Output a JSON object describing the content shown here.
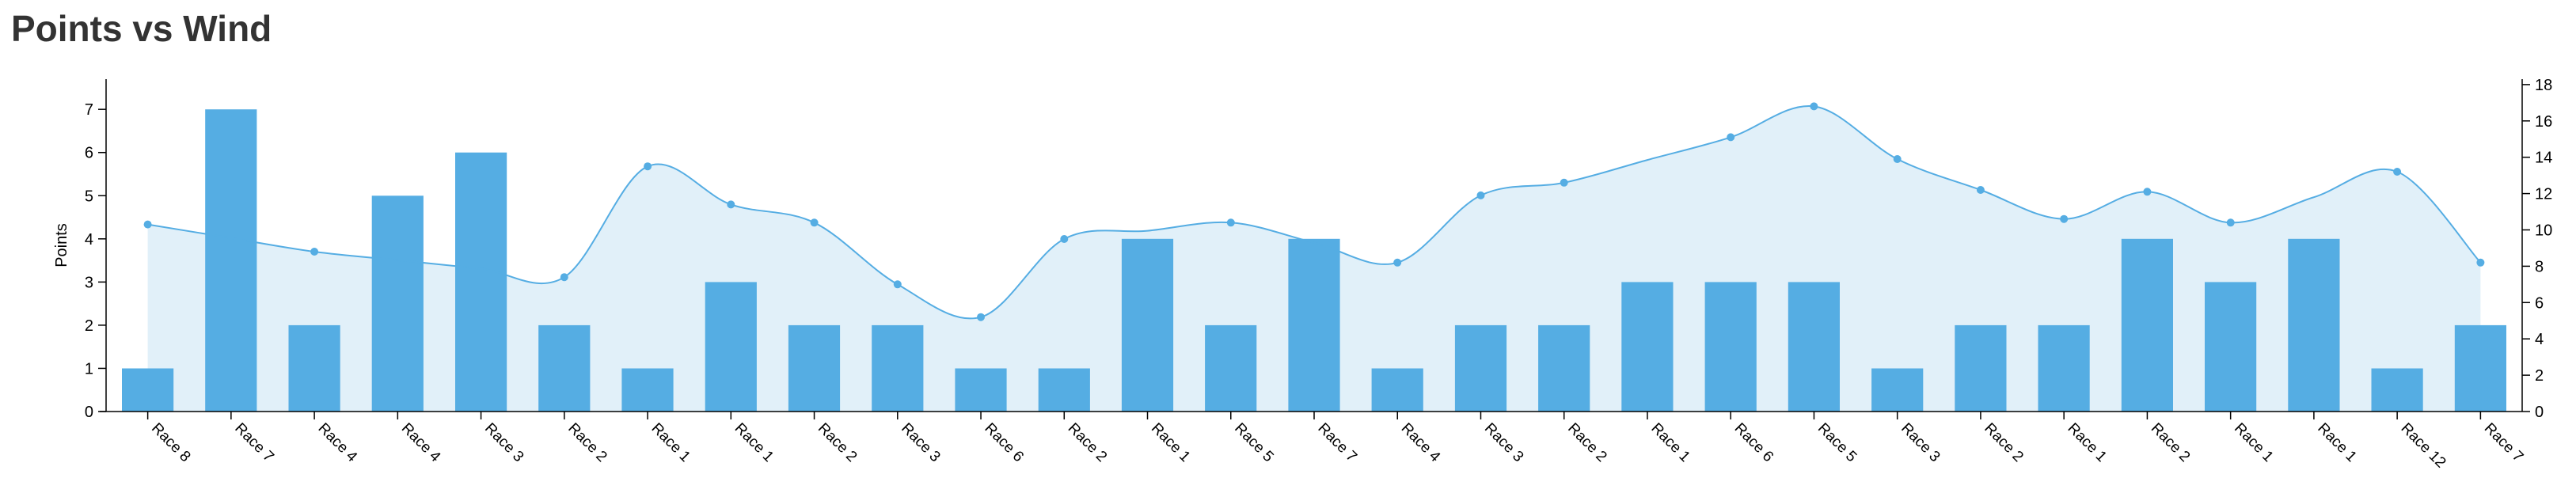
{
  "page": {
    "title": "Points vs Wind"
  },
  "colors": {
    "bar": "#55ade3",
    "line": "#55ade3",
    "area_fill": "#dcedf8",
    "axis": "#000000",
    "title": "#333333"
  },
  "chart_data": {
    "type": "bar",
    "title": "Points vs Wind",
    "xlabel": "",
    "ylabel": "Points",
    "y2label": "",
    "categories": [
      "Race 8",
      "Race 7",
      "Race 4",
      "Race 4",
      "Race 3",
      "Race 2",
      "Race 1",
      "Race 1",
      "Race 2",
      "Race 3",
      "Race 6",
      "Race 2",
      "Race 1",
      "Race 5",
      "Race 7",
      "Race 4",
      "Race 3",
      "Race 2",
      "Race 1",
      "Race 6",
      "Race 5",
      "Race 3",
      "Race 2",
      "Race 1",
      "Race 2",
      "Race 1",
      "Race 1",
      "Race 12",
      "Race 7"
    ],
    "ylim": [
      0,
      7.7
    ],
    "y_ticks": [
      0,
      1,
      2,
      3,
      4,
      5,
      6,
      7
    ],
    "y2lim": [
      0,
      18.3
    ],
    "y2_ticks": [
      0,
      2,
      4,
      6,
      8,
      10,
      12,
      14,
      16,
      18
    ],
    "grid": false,
    "series": [
      {
        "type": "bar",
        "axis": "left",
        "values": [
          1,
          7,
          2,
          5,
          6,
          2,
          1,
          3,
          2,
          2,
          1,
          1,
          4,
          2,
          4,
          1,
          2,
          2,
          3,
          3,
          3,
          1,
          2,
          2,
          4,
          3,
          4,
          1,
          2
        ]
      },
      {
        "type": "area",
        "axis": "right",
        "values": [
          10.3,
          null,
          8.8,
          null,
          null,
          7.4,
          13.5,
          11.4,
          10.4,
          7.0,
          5.2,
          9.5,
          null,
          10.4,
          null,
          8.2,
          11.9,
          12.6,
          null,
          15.1,
          16.8,
          13.9,
          12.2,
          10.6,
          12.1,
          10.4,
          null,
          13.2,
          8.2
        ]
      }
    ]
  }
}
